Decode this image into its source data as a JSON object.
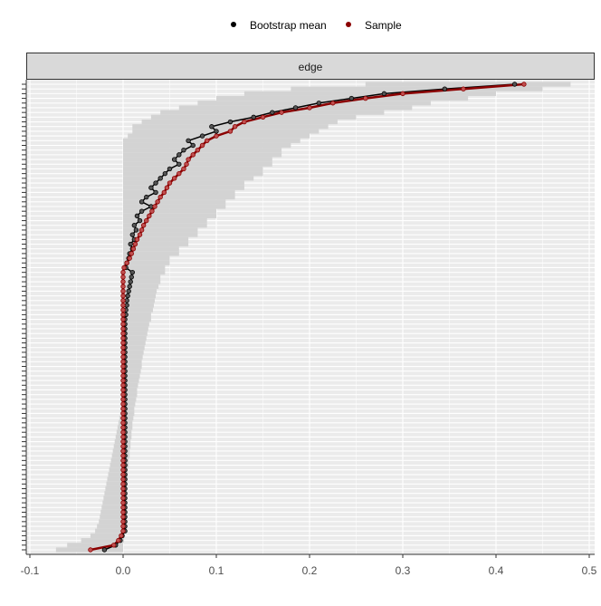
{
  "chart_data": {
    "type": "line",
    "facet_label": "edge",
    "legend": {
      "position": "top",
      "entries": [
        {
          "name": "Bootstrap mean",
          "color": "#000000"
        },
        {
          "name": "Sample",
          "color": "#8b0000"
        }
      ]
    },
    "xlim": [
      -0.1,
      0.5
    ],
    "x_ticks": [
      "-0.1",
      "0.0",
      "0.1",
      "0.2",
      "0.3",
      "0.4",
      "0.5"
    ],
    "x_tick_values": [
      -0.1,
      0,
      0.1,
      0.2,
      0.3,
      0.4,
      0.5
    ],
    "grid": true,
    "ci_color": "#d3d3d3",
    "sample": [
      0.43,
      0.365,
      0.3,
      0.26,
      0.225,
      0.2,
      0.17,
      0.15,
      0.13,
      0.12,
      0.115,
      0.1,
      0.09,
      0.085,
      0.08,
      0.075,
      0.07,
      0.068,
      0.065,
      0.06,
      0.055,
      0.05,
      0.047,
      0.044,
      0.04,
      0.037,
      0.034,
      0.031,
      0.028,
      0.025,
      0.022,
      0.02,
      0.018,
      0.015,
      0.013,
      0.011,
      0.009,
      0.007,
      0.004,
      0.001,
      0,
      0,
      0,
      0,
      0,
      0,
      0,
      0,
      0,
      0,
      0,
      0,
      0,
      0,
      0,
      0,
      0,
      0,
      0,
      0,
      0,
      0,
      0,
      0,
      0,
      0,
      0,
      0,
      0,
      0,
      0,
      0,
      0,
      0,
      0,
      0,
      0,
      0,
      0,
      0,
      0,
      0,
      0,
      0,
      0,
      0,
      0,
      0,
      0,
      0,
      0,
      0,
      0,
      0,
      0,
      0,
      -0.002,
      -0.005,
      -0.01,
      -0.035
    ],
    "bootstrap_mean": [
      0.42,
      0.345,
      0.28,
      0.245,
      0.21,
      0.185,
      0.16,
      0.14,
      0.115,
      0.095,
      0.1,
      0.085,
      0.07,
      0.075,
      0.065,
      0.06,
      0.055,
      0.06,
      0.05,
      0.045,
      0.04,
      0.035,
      0.03,
      0.035,
      0.025,
      0.02,
      0.03,
      0.02,
      0.015,
      0.018,
      0.012,
      0.014,
      0.01,
      0.012,
      0.008,
      0.01,
      0.007,
      0.006,
      0.004,
      0.003,
      0.01,
      0.009,
      0.008,
      0.007,
      0.006,
      0.005,
      0.004,
      0.004,
      0.003,
      0.003,
      0.002,
      0.002,
      0.002,
      0.002,
      0.002,
      0.002,
      0.002,
      0.002,
      0.002,
      0.002,
      0.002,
      0.002,
      0.002,
      0.002,
      0.002,
      0.002,
      0.002,
      0.002,
      0.002,
      0.002,
      0.002,
      0.002,
      0.002,
      0.002,
      0.002,
      0.002,
      0.002,
      0.002,
      0.002,
      0.002,
      0.002,
      0.002,
      0.002,
      0.002,
      0.002,
      0.002,
      0.002,
      0.002,
      0.002,
      0.002,
      0.002,
      0.002,
      0.002,
      0.002,
      0.002,
      0.002,
      -0.001,
      -0.003,
      -0.008,
      -0.02
    ],
    "ci_upper": [
      0.48,
      0.45,
      0.4,
      0.37,
      0.33,
      0.31,
      0.28,
      0.25,
      0.23,
      0.22,
      0.21,
      0.2,
      0.19,
      0.18,
      0.17,
      0.17,
      0.16,
      0.16,
      0.15,
      0.15,
      0.14,
      0.13,
      0.13,
      0.12,
      0.12,
      0.11,
      0.11,
      0.1,
      0.1,
      0.09,
      0.09,
      0.08,
      0.08,
      0.07,
      0.07,
      0.06,
      0.06,
      0.05,
      0.05,
      0.045,
      0.045,
      0.04,
      0.04,
      0.038,
      0.036,
      0.035,
      0.034,
      0.033,
      0.032,
      0.03,
      0.03,
      0.028,
      0.027,
      0.026,
      0.025,
      0.024,
      0.023,
      0.022,
      0.021,
      0.02,
      0.02,
      0.019,
      0.018,
      0.017,
      0.016,
      0.015,
      0.015,
      0.014,
      0.013,
      0.012,
      0.012,
      0.011,
      0.01,
      0.01,
      0.009,
      0.009,
      0.008,
      0.008,
      0.007,
      0.007,
      0.006,
      0.006,
      0.005,
      0.005,
      0.005,
      0.004,
      0.004,
      0.004,
      0.003,
      0.003,
      0.003,
      0.003,
      0.002,
      0.002,
      0.002,
      0.002,
      0.002,
      0.001,
      0.0,
      0.0
    ],
    "ci_lower": [
      0.26,
      0.18,
      0.13,
      0.1,
      0.08,
      0.06,
      0.04,
      0.03,
      0.02,
      0.01,
      0.01,
      0.005,
      0,
      0,
      0,
      0,
      0,
      0,
      0,
      0,
      0,
      0,
      0,
      0,
      0,
      0,
      0,
      0,
      0,
      0,
      0,
      0,
      0,
      0,
      0,
      0,
      0,
      0,
      0,
      0,
      -0.002,
      -0.002,
      -0.002,
      -0.002,
      -0.002,
      -0.002,
      -0.002,
      -0.002,
      -0.002,
      -0.002,
      -0.002,
      -0.002,
      -0.002,
      -0.002,
      -0.002,
      -0.002,
      -0.002,
      -0.002,
      -0.002,
      -0.002,
      -0.002,
      -0.002,
      -0.002,
      -0.002,
      -0.002,
      -0.002,
      -0.002,
      -0.002,
      -0.002,
      -0.002,
      -0.003,
      -0.004,
      -0.005,
      -0.006,
      -0.007,
      -0.008,
      -0.009,
      -0.01,
      -0.011,
      -0.012,
      -0.013,
      -0.014,
      -0.015,
      -0.016,
      -0.017,
      -0.018,
      -0.019,
      -0.02,
      -0.021,
      -0.022,
      -0.023,
      -0.024,
      -0.025,
      -0.026,
      -0.028,
      -0.03,
      -0.035,
      -0.045,
      -0.06,
      -0.072
    ]
  }
}
